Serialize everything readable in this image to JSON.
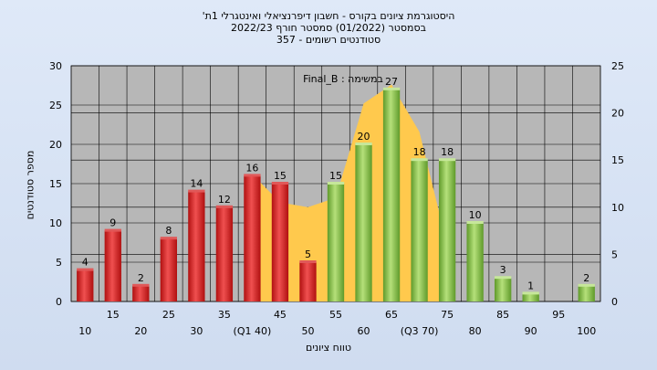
{
  "chart_data": {
    "type": "bar",
    "title_lines": [
      "'היסטוגרמת ציונים בקורס - חשבון דיפרנציאלי ואינטגרלי 1ת",
      "בסמסטר  (01/2022)  סמסטר חורף  2022/23",
      "סטודנטים רשומים - 357"
    ],
    "annotation": "Final_B : במשימה",
    "xlabel": "טווח ציונים",
    "ylabel": "מספר סטודנטים",
    "ylim_left": [
      0,
      30
    ],
    "yticks_left": [
      0,
      5,
      10,
      15,
      20,
      25,
      30
    ],
    "ylim_right": [
      0,
      25
    ],
    "yticks_right": [
      0,
      5,
      10,
      15,
      20,
      25
    ],
    "xticks_row1": [
      "15",
      "25",
      "35",
      "45",
      "55",
      "65",
      "75",
      "85",
      "95"
    ],
    "xticks_row2": [
      "10",
      "20",
      "30",
      "(Q1 40)",
      "50",
      "60",
      "(Q3 70)",
      "80",
      "90",
      "100"
    ],
    "categories": [
      "10",
      "15",
      "20",
      "25",
      "30",
      "35",
      "40",
      "45",
      "50",
      "55",
      "60",
      "65",
      "70",
      "75",
      "80",
      "85",
      "90",
      "95",
      "100"
    ],
    "values": [
      4,
      9,
      2,
      8,
      14,
      12,
      16,
      15,
      5,
      15,
      20,
      27,
      18,
      18,
      10,
      3,
      1,
      0,
      2
    ],
    "bar_colors": [
      "red",
      "red",
      "red",
      "red",
      "red",
      "red",
      "red",
      "red",
      "red",
      "green",
      "green",
      "green",
      "green",
      "green",
      "green",
      "green",
      "green",
      "green",
      "green"
    ],
    "area_curve_right_axis": [
      {
        "x": "40",
        "y": 13.5
      },
      {
        "x": "45",
        "y": 10.5
      },
      {
        "x": "50",
        "y": 10
      },
      {
        "x": "55",
        "y": 11
      },
      {
        "x": "60",
        "y": 21
      },
      {
        "x": "65",
        "y": 23
      },
      {
        "x": "70",
        "y": 18
      },
      {
        "x": "75",
        "y": 6
      }
    ],
    "grid": true,
    "colors": {
      "red": "#d42020",
      "green": "#8bc34a",
      "area": "#ffc94d",
      "plot_bg": "#b7b7b7"
    }
  }
}
